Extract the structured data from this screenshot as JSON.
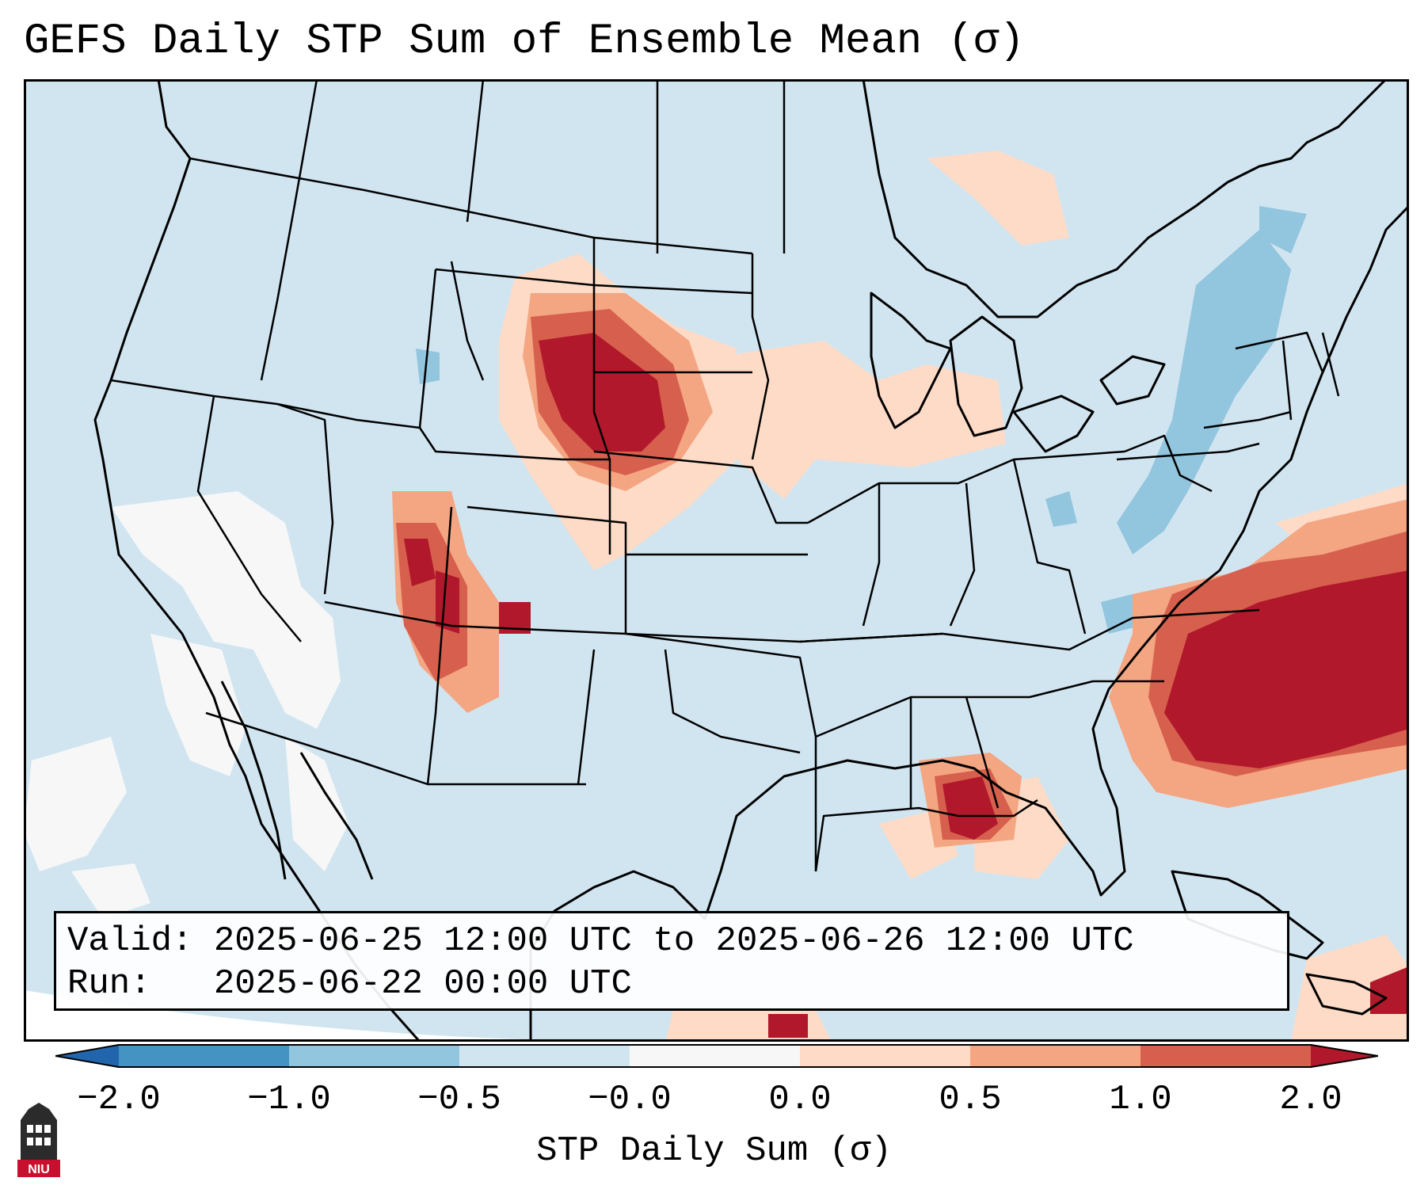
{
  "title": "GEFS Daily STP Sum of Ensemble Mean (σ)",
  "info": {
    "valid_label": "Valid:",
    "valid_value": "2025-06-25 12:00 UTC to 2025-06-26 12:00 UTC",
    "run_label": "Run:",
    "run_value": "2025-06-22 00:00 UTC"
  },
  "colorbar": {
    "label": "STP Daily Sum (σ)",
    "ticks": [
      "−2.0",
      "−1.0",
      "−0.5",
      "−0.0",
      "0.0",
      "0.5",
      "1.0",
      "2.0"
    ],
    "colors": {
      "lt_neg2": "#2166ac",
      "neg2_neg1": "#4393c3",
      "neg1_neg05": "#92c5de",
      "neg05_0": "#d1e5f0",
      "zero": "#f7f7f7",
      "0_05": "#fddbc7",
      "05_1": "#f4a582",
      "1_2": "#d6604d",
      "gt_2": "#b2182b"
    }
  },
  "logo": {
    "text": "NIU"
  },
  "colors": {
    "background": "#d1e5f0",
    "outline": "#000000"
  }
}
